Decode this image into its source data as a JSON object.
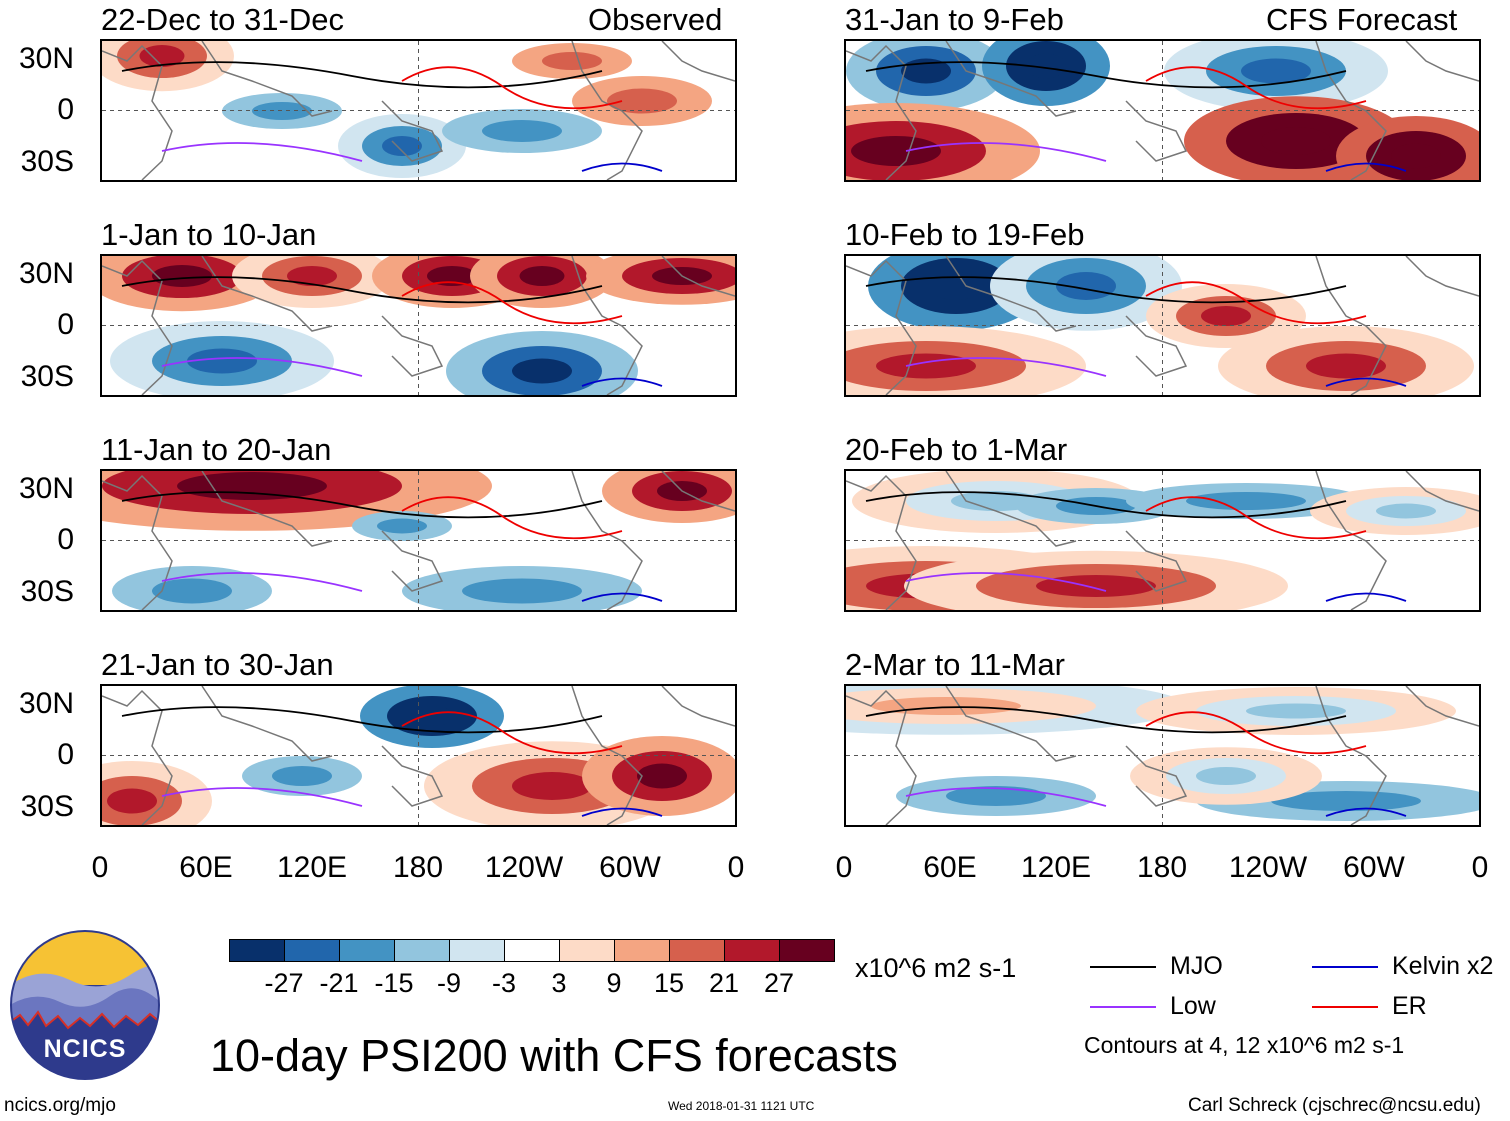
{
  "header": {
    "left_label": "Observed",
    "right_label": "CFS Forecast"
  },
  "panels": {
    "observed": [
      {
        "title": "22-Dec to 31-Dec"
      },
      {
        "title": "1-Jan to 10-Jan"
      },
      {
        "title": "11-Jan to 20-Jan"
      },
      {
        "title": "21-Jan to 30-Jan"
      }
    ],
    "forecast": [
      {
        "title": "31-Jan to 9-Feb"
      },
      {
        "title": "10-Feb to 19-Feb"
      },
      {
        "title": "20-Feb to 1-Mar"
      },
      {
        "title": "2-Mar to 11-Mar"
      }
    ]
  },
  "axes": {
    "y_ticks": [
      "30N",
      "0",
      "30S"
    ],
    "x_ticks": [
      "0",
      "60E",
      "120E",
      "180",
      "120W",
      "60W",
      "0"
    ]
  },
  "colorbar": {
    "colors": [
      "#08306b",
      "#2166ac",
      "#4393c3",
      "#92c5de",
      "#d1e5f0",
      "#ffffff",
      "#fddbc7",
      "#f4a582",
      "#d6604d",
      "#b2182b",
      "#67001f"
    ],
    "labels": [
      "-27",
      "-21",
      "-15",
      "-9",
      "-3",
      "3",
      "9",
      "15",
      "21",
      "27"
    ],
    "units": "x10^6 m2 s-1"
  },
  "legend": {
    "items": [
      {
        "label": "MJO",
        "color": "#000000"
      },
      {
        "label": "Kelvin x2",
        "color": "#0000cc"
      },
      {
        "label": "Low",
        "color": "#9933ff"
      },
      {
        "label": "ER",
        "color": "#ee0000"
      }
    ],
    "note": "Contours at 4, 12 x10^6 m2 s-1"
  },
  "logo": {
    "text": "NCICS"
  },
  "footer": {
    "title": "10-day PSI200 with CFS forecasts",
    "url": "ncics.org/mjo",
    "timestamp": "Wed 2018-01-31 1121 UTC",
    "author": "Carl Schreck (cjschrec@ncsu.edu)"
  }
}
